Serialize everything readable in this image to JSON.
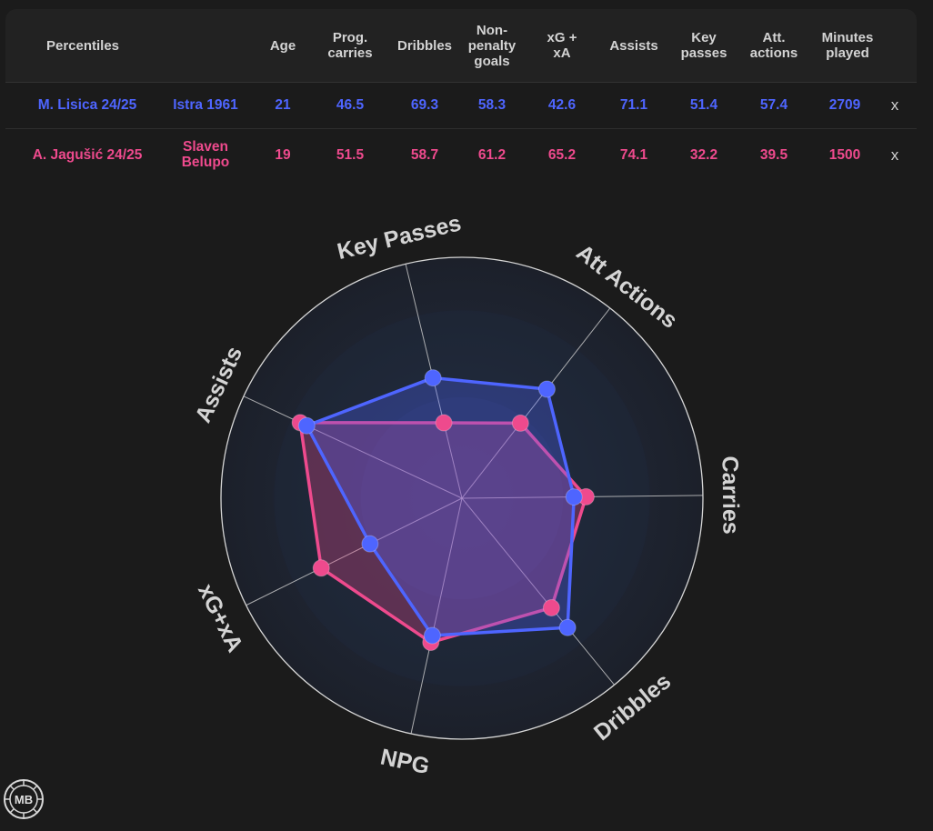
{
  "table": {
    "headers": [
      "Percentiles",
      "Age",
      "Prog. carries",
      "Dribbles",
      "Non-penalty goals",
      "xG + xA",
      "Assists",
      "Key passes",
      "Att. actions",
      "Minutes played"
    ],
    "rows": [
      {
        "player": "M. Lisica 24/25",
        "team": "Istra 1961",
        "age": "21",
        "prog_carries": "46.5",
        "dribbles": "69.3",
        "npg": "58.3",
        "xg_xa": "42.6",
        "assists": "71.1",
        "key_passes": "51.4",
        "att_actions": "57.4",
        "minutes": "2709",
        "remove": "x",
        "color": "#4e65ff"
      },
      {
        "player": "A. Jagušić 24/25",
        "team": "Slaven Belupo",
        "age": "19",
        "prog_carries": "51.5",
        "dribbles": "58.7",
        "npg": "61.2",
        "xg_xa": "65.2",
        "assists": "74.1",
        "key_passes": "32.2",
        "att_actions": "39.5",
        "minutes": "1500",
        "remove": "x",
        "color": "#ee4a8d"
      }
    ]
  },
  "chart_data": {
    "type": "radar",
    "axes": [
      "Key Passes",
      "Att Actions",
      "Carries",
      "Dribbles",
      "NPG",
      "xG+xA",
      "Assists"
    ],
    "range": [
      0,
      100
    ],
    "series": [
      {
        "name": "M. Lisica 24/25",
        "color": "#4e65ff",
        "values": [
          51.4,
          57.4,
          46.5,
          69.3,
          58.3,
          42.6,
          71.1
        ]
      },
      {
        "name": "A. Jagušić 24/25",
        "color": "#ee4a8d",
        "values": [
          32.2,
          39.5,
          51.5,
          58.7,
          61.2,
          65.2,
          74.1
        ]
      }
    ]
  },
  "logo": {
    "text": "MB"
  }
}
